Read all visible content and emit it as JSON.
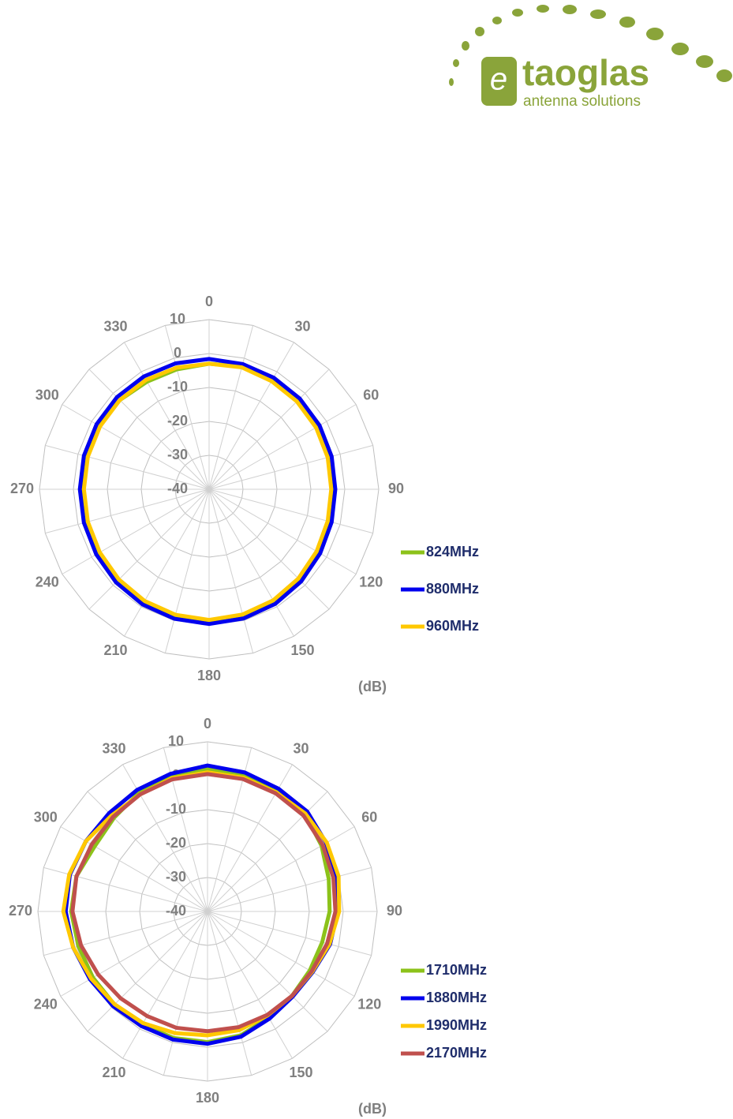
{
  "logo": {
    "name": "taoglas",
    "tagline": "antenna solutions"
  },
  "chart_data": [
    {
      "type": "polar",
      "theta": [
        0,
        15,
        30,
        45,
        60,
        75,
        90,
        105,
        120,
        135,
        150,
        165,
        180,
        195,
        210,
        225,
        240,
        255,
        270,
        285,
        300,
        315,
        330,
        345
      ],
      "thetaticks": [
        0,
        30,
        60,
        90,
        120,
        150,
        180,
        210,
        240,
        270,
        300,
        330
      ],
      "rlim": [
        -40,
        10
      ],
      "rticks": [
        -40,
        -30,
        -20,
        -10,
        0,
        10
      ],
      "r_label": "(dB)",
      "series": [
        {
          "name": "824MHz",
          "color": "#8cc21a",
          "values": [
            -3,
            -2.6,
            -2.8,
            -3,
            -3.2,
            -3.4,
            -3.6,
            -3.4,
            -3,
            -2.4,
            -1.8,
            -1.4,
            -1.1,
            -1.3,
            -1.6,
            -2,
            -2.4,
            -2.6,
            -2.7,
            -2.6,
            -2.6,
            -2.8,
            -3.4,
            -3.4
          ]
        },
        {
          "name": "880MHz",
          "color": "#0000ee",
          "values": [
            -1.6,
            -1.8,
            -2,
            -2.2,
            -2.4,
            -2.6,
            -2.8,
            -2.6,
            -2.2,
            -1.6,
            -1,
            -0.6,
            -0.3,
            -0.5,
            -0.8,
            -1.2,
            -1.6,
            -1.8,
            -1.9,
            -1.8,
            -1.7,
            -1.6,
            -1.6,
            -1.6
          ]
        },
        {
          "name": "960MHz",
          "color": "#ffc800",
          "values": [
            -3,
            -2.8,
            -3.2,
            -3.4,
            -3.6,
            -3.8,
            -4,
            -3.8,
            -3.4,
            -2.8,
            -2.2,
            -1.8,
            -1.5,
            -1.7,
            -2,
            -2.4,
            -2.8,
            -3,
            -3.1,
            -3,
            -2.9,
            -2.8,
            -2.8,
            -2.9
          ]
        }
      ]
    },
    {
      "type": "polar",
      "theta": [
        0,
        15,
        30,
        45,
        60,
        75,
        90,
        105,
        120,
        135,
        150,
        165,
        180,
        195,
        210,
        225,
        240,
        255,
        270,
        285,
        300,
        315,
        330,
        345
      ],
      "thetaticks": [
        0,
        30,
        60,
        90,
        120,
        150,
        180,
        210,
        240,
        270,
        300,
        330
      ],
      "rlim": [
        -40,
        10
      ],
      "rticks": [
        -40,
        -30,
        -20,
        -10,
        0,
        10
      ],
      "r_label": "(dB)",
      "series": [
        {
          "name": "1710MHz",
          "color": "#8cc21a",
          "values": [
            2,
            1.6,
            1.2,
            0.6,
            -1.2,
            -3,
            -4,
            -5,
            -5.2,
            -4.8,
            -3.8,
            -2.2,
            -1.5,
            -1.4,
            -1.5,
            -1.2,
            -1,
            -0.6,
            0.2,
            0,
            -1.6,
            -1,
            0.4,
            1.2
          ]
        },
        {
          "name": "1880MHz",
          "color": "#0000ee",
          "values": [
            3,
            2.4,
            1.8,
            1.6,
            0.4,
            -0.8,
            -1.6,
            -2.6,
            -4.2,
            -4.5,
            -3.5,
            -1.8,
            -1,
            -0.9,
            -1,
            -0.6,
            0,
            1,
            1.8,
            2,
            1.4,
            1,
            1.4,
            2
          ]
        },
        {
          "name": "1990MHz",
          "color": "#ffc800",
          "values": [
            1,
            0.8,
            0.5,
            0.8,
            0.6,
            0,
            -1.2,
            -2.8,
            -4.4,
            -4.8,
            -4.6,
            -3.8,
            -3.5,
            -2.9,
            -2,
            -1.3,
            -0.4,
            1,
            2.5,
            2.2,
            1.4,
            0,
            -0.2,
            0.6
          ]
        },
        {
          "name": "2170MHz",
          "color": "#c0504d",
          "values": [
            0.5,
            0.4,
            0.2,
            0,
            -0.8,
            -1.6,
            -2.3,
            -3.5,
            -4.6,
            -4.8,
            -4.8,
            -4.7,
            -4.7,
            -4.5,
            -4.4,
            -3.8,
            -2.8,
            -1.4,
            -0.2,
            0,
            -0.6,
            -0.6,
            -0.2,
            0.3
          ]
        }
      ]
    }
  ]
}
